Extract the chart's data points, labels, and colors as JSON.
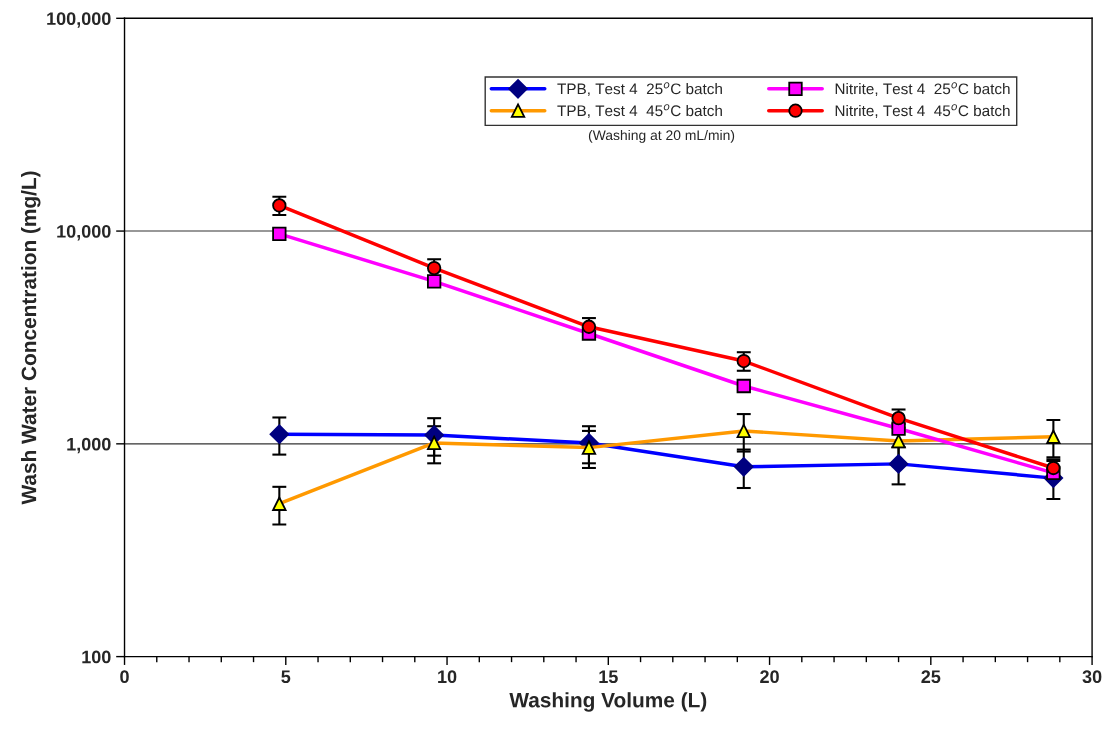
{
  "chart_data": {
    "type": "line",
    "xlabel": "Washing Volume (L)",
    "ylabel": "Wash Water Concentration (mg/L)",
    "log": "y",
    "xlim": [
      0,
      30
    ],
    "ylim": [
      100,
      100000
    ],
    "xticks": [
      0,
      {
        "value": 1,
        "label": null
      },
      {
        "value": 2,
        "label": null
      },
      {
        "value": 3,
        "label": null
      },
      {
        "value": 4,
        "label": null
      },
      5,
      {
        "value": 6,
        "label": null
      },
      {
        "value": 7,
        "label": null
      },
      {
        "value": 8,
        "label": null
      },
      {
        "value": 9,
        "label": null
      },
      10,
      {
        "value": 11,
        "label": null
      },
      {
        "value": 12,
        "label": null
      },
      {
        "value": 13,
        "label": null
      },
      {
        "value": 14,
        "label": null
      },
      15,
      {
        "value": 16,
        "label": null
      },
      {
        "value": 17,
        "label": null
      },
      {
        "value": 18,
        "label": null
      },
      {
        "value": 19,
        "label": null
      },
      20,
      {
        "value": 21,
        "label": null
      },
      {
        "value": 22,
        "label": null
      },
      {
        "value": 23,
        "label": null
      },
      {
        "value": 24,
        "label": null
      },
      25,
      {
        "value": 26,
        "label": null
      },
      {
        "value": 27,
        "label": null
      },
      {
        "value": 28,
        "label": null
      },
      {
        "value": 29,
        "label": null
      },
      30
    ],
    "yticks": [
      {
        "value": 100,
        "label": "100"
      },
      {
        "value": 1000,
        "label": "1,000"
      },
      {
        "value": 10000,
        "label": "10,000"
      },
      {
        "value": 100000,
        "label": "100,000"
      }
    ],
    "grid": "y",
    "legend": "top right",
    "annotations": [
      "(Washing at 20 mL/min)"
    ],
    "x": [
      4.8,
      9.6,
      14.4,
      19.2,
      24,
      28.8
    ],
    "series": [
      {
        "name": "TPB, Test 4  25$^{o}$C batch",
        "color": "#0000ff",
        "marker": "diamond",
        "values": [
          1110,
          1100,
          1010,
          780,
          805,
          690
        ],
        "errors": [
          220,
          220,
          200,
          160,
          160,
          140
        ]
      },
      {
        "name": "TPB, Test 4  45$^{o}$C batch",
        "color": "#ff9900",
        "marker": "triangle",
        "values": [
          523,
          1010,
          960,
          1150,
          1030,
          1080
        ],
        "errors": [
          105,
          200,
          190,
          230,
          210,
          215
        ]
      },
      {
        "name": "Nitrite, Test 4  25$^{o}$C batch",
        "color": "#ff00ff",
        "marker": "square",
        "values": [
          9700,
          5800,
          3300,
          1870,
          1180,
          730
        ]
      },
      {
        "name": "Nitrite, Test 4  45$^{o}$C batch",
        "color": "#ff0000",
        "marker": "circle",
        "values": [
          13200,
          6700,
          3550,
          2450,
          1320,
          770
        ],
        "errors": [
          1300,
          670,
          350,
          245,
          130,
          77
        ]
      }
    ]
  }
}
